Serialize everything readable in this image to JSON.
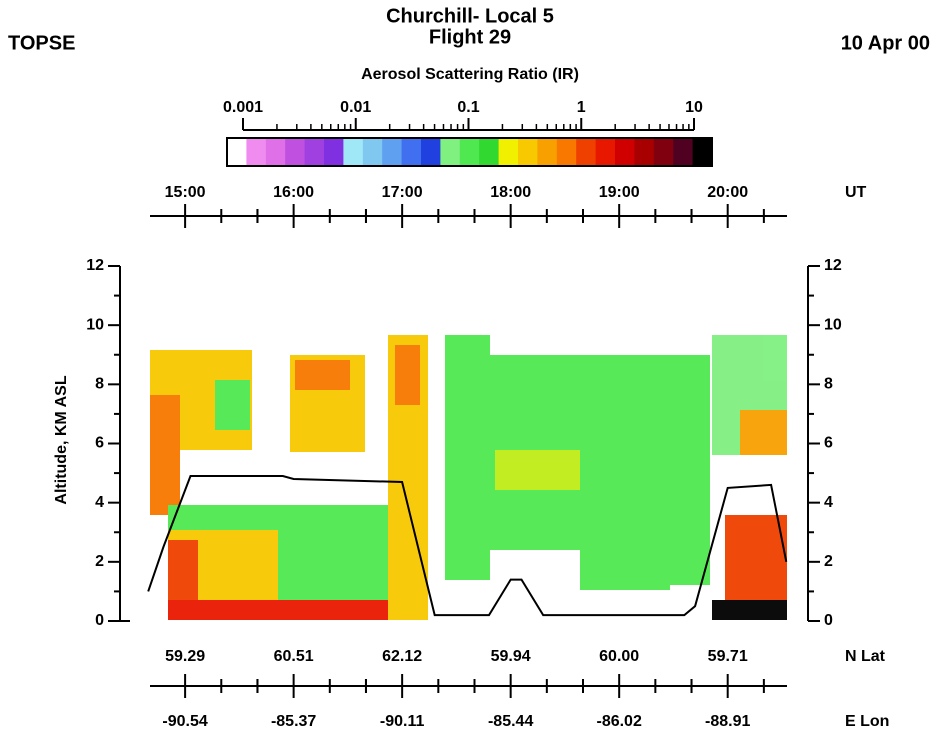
{
  "chart_data": {
    "type": "curtain",
    "left_label": "TOPSE",
    "title": "Churchill- Local 5",
    "subtitle": "Flight 29",
    "right_label": "10 Apr 00",
    "colorbar": {
      "title": "Aerosol Scattering Ratio (IR)",
      "log": true,
      "lim": [
        0.001,
        10
      ],
      "ticks": [
        0.001,
        0.01,
        0.1,
        1,
        10
      ],
      "colors": [
        "#ffffff",
        "#f08cf0",
        "#e070e8",
        "#c050e0",
        "#a040e0",
        "#8030e0",
        "#a0e8f8",
        "#80c8f0",
        "#60a0f0",
        "#4070f0",
        "#2040e0",
        "#80f080",
        "#50e850",
        "#30d830",
        "#f0f000",
        "#f8c800",
        "#f8a000",
        "#f87800",
        "#f04000",
        "#e81800",
        "#d00000",
        "#a80000",
        "#800010",
        "#500020",
        "#000000"
      ]
    },
    "x_label": "UT",
    "xlim": [
      14.4,
      20.74
    ],
    "xticks": [
      {
        "value": 15,
        "label": "15:00"
      },
      {
        "value": 16,
        "label": "16:00"
      },
      {
        "value": 17,
        "label": "17:00"
      },
      {
        "value": 18,
        "label": "18:00"
      },
      {
        "value": 19,
        "label": "19:00"
      },
      {
        "value": 20,
        "label": "20:00"
      }
    ],
    "y_label": "Altitude, KM ASL",
    "ylim": [
      0,
      12
    ],
    "yticks": [
      0,
      2,
      4,
      6,
      8,
      10,
      12
    ],
    "lat_label": "N Lat",
    "lat": [
      59.29,
      60.51,
      62.12,
      59.94,
      {
        "value": 60,
        "label": "60.00"
      },
      59.71
    ],
    "lon_label": "E Lon",
    "lon": [
      -90.54,
      -85.37,
      -90.11,
      -85.44,
      -86.02,
      -88.91
    ],
    "flight_altitude": {
      "color": "#000000",
      "x": [
        14.66,
        14.8,
        15.05,
        15.9,
        16.0,
        17.0,
        17.3,
        17.8,
        18.0,
        18.1,
        18.3,
        19.6,
        19.7,
        20.0,
        20.4,
        20.54
      ],
      "values": [
        1.0,
        2.5,
        4.9,
        4.9,
        4.8,
        4.7,
        0.2,
        0.2,
        1.4,
        1.4,
        0.2,
        0.2,
        0.5,
        4.5,
        4.6,
        2.0
      ]
    }
  }
}
